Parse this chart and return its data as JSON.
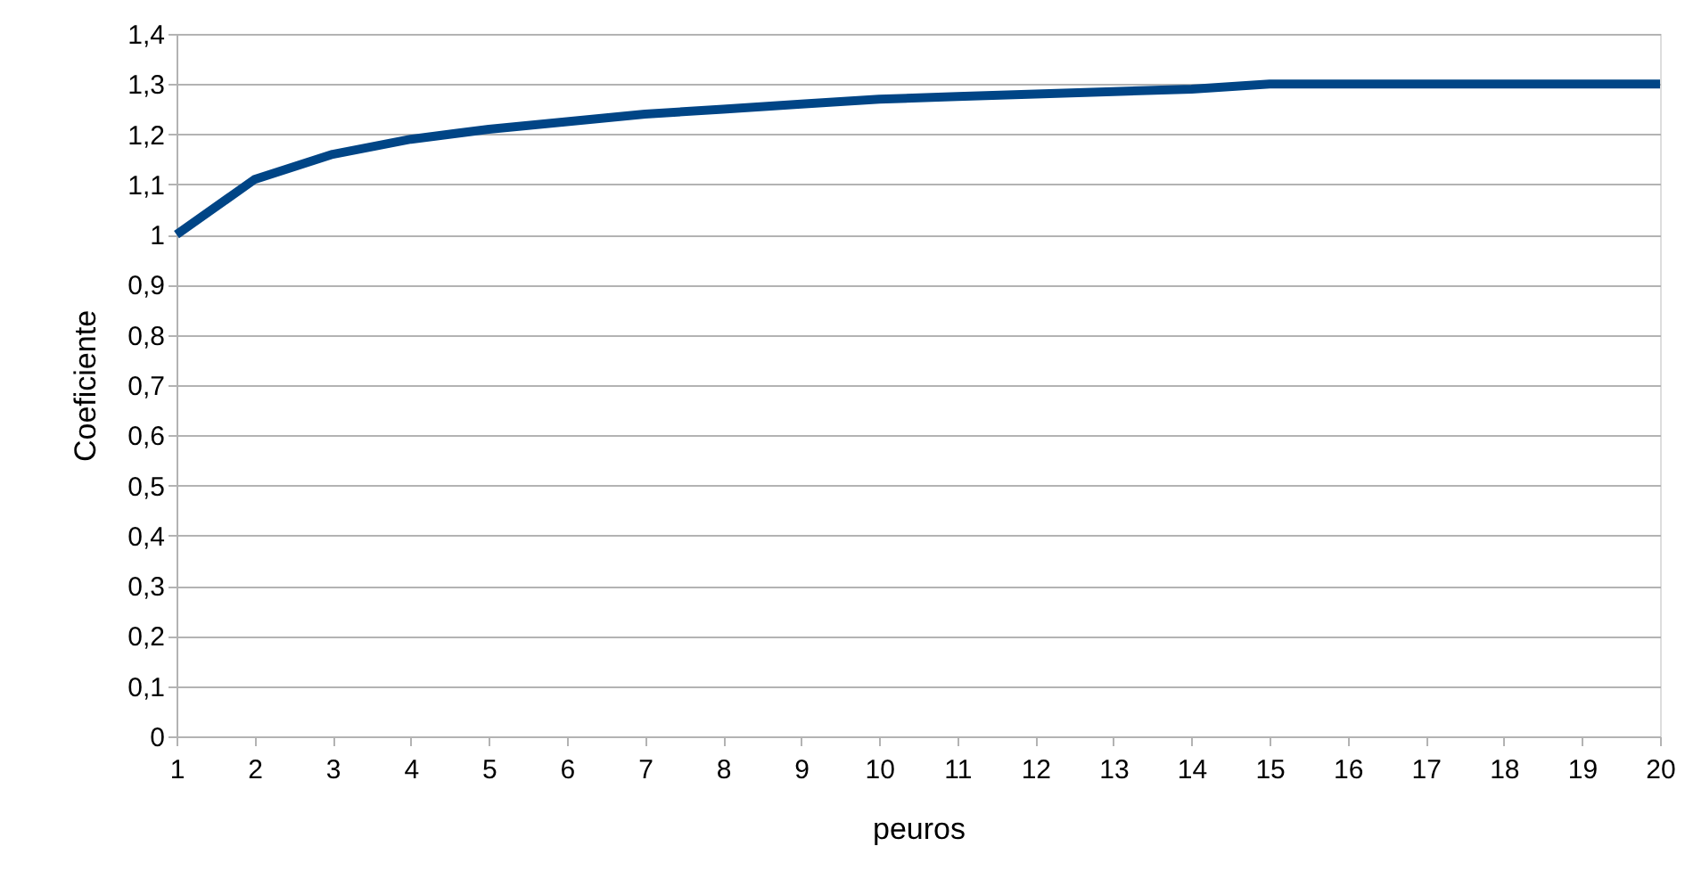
{
  "chart_data": {
    "type": "line",
    "xlabel": "peuros",
    "ylabel": "Coeficiente",
    "x": [
      1,
      2,
      3,
      4,
      5,
      6,
      7,
      8,
      9,
      10,
      11,
      12,
      13,
      14,
      15,
      16,
      17,
      18,
      19,
      20
    ],
    "series": [
      {
        "color": "#004586",
        "values": [
          1.0,
          1.11,
          1.16,
          1.19,
          1.21,
          1.225,
          1.24,
          1.25,
          1.26,
          1.27,
          1.275,
          1.28,
          1.285,
          1.29,
          1.3,
          1.3,
          1.3,
          1.3,
          1.3,
          1.3
        ]
      }
    ],
    "xlim": [
      1,
      20
    ],
    "xticks": [
      1,
      2,
      3,
      4,
      5,
      6,
      7,
      8,
      9,
      10,
      11,
      12,
      13,
      14,
      15,
      16,
      17,
      18,
      19,
      20
    ],
    "ylim": [
      0,
      1.4
    ],
    "yticks": [
      0,
      {
        "value": 0.1,
        "label": "0,1"
      },
      {
        "value": 0.2,
        "label": "0,2"
      },
      {
        "value": 0.3,
        "label": "0,3"
      },
      {
        "value": 0.4,
        "label": "0,4"
      },
      {
        "value": 0.5,
        "label": "0,5"
      },
      {
        "value": 0.6,
        "label": "0,6"
      },
      {
        "value": 0.7,
        "label": "0,7"
      },
      {
        "value": 0.8,
        "label": "0,8"
      },
      {
        "value": 0.9,
        "label": "0,9"
      },
      1,
      {
        "value": 1.1,
        "label": "1,1"
      },
      {
        "value": 1.2,
        "label": "1,2"
      },
      {
        "value": 1.3,
        "label": "1,3"
      },
      {
        "value": 1.4,
        "label": "1,4"
      }
    ],
    "grid": "y",
    "marker": "none",
    "line_style": "solid"
  }
}
